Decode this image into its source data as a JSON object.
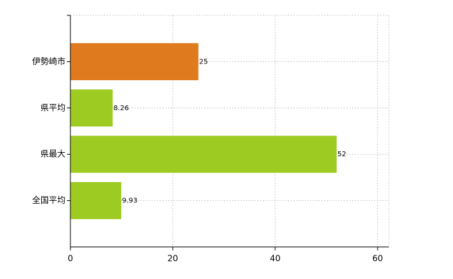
{
  "chart_data": {
    "type": "bar",
    "orientation": "horizontal",
    "categories": [
      "伊勢崎市",
      "県平均",
      "県最大",
      "全国平均"
    ],
    "values": [
      25,
      8.26,
      52,
      9.93
    ],
    "colors": [
      "#e07a1f",
      "#9dcb22",
      "#9dcb22",
      "#9dcb22"
    ],
    "xlim": [
      0,
      62.2
    ],
    "xticks": [
      0,
      20,
      40,
      60
    ],
    "grid": true
  }
}
